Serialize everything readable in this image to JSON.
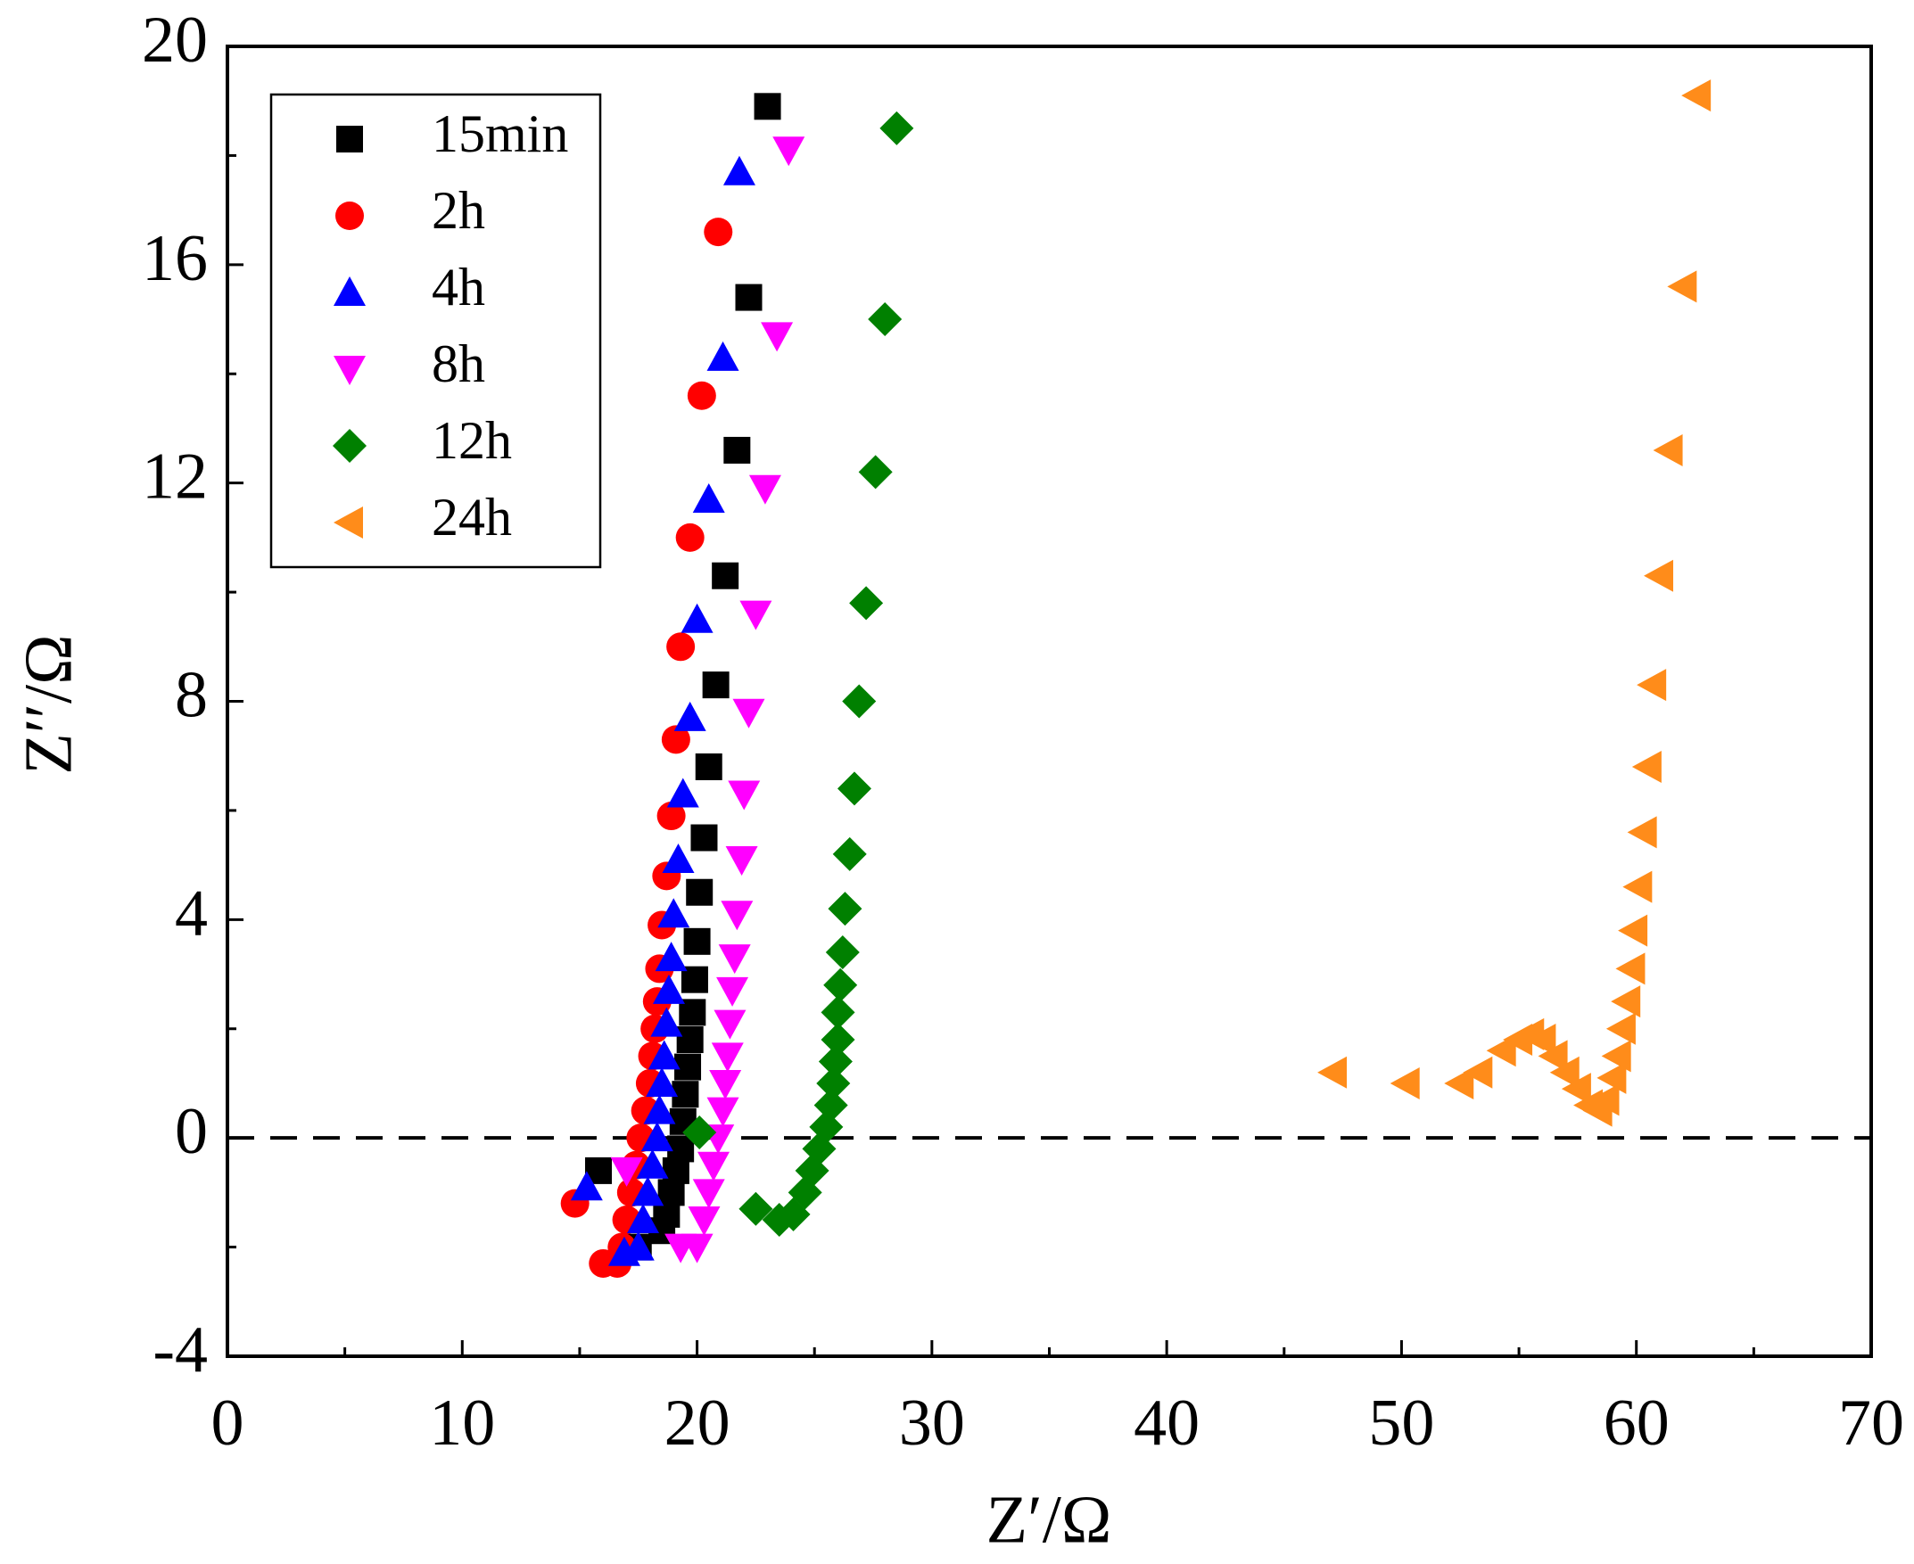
{
  "chart_data": {
    "type": "scatter",
    "x_label": "Z′/Ω",
    "y_label": "Z′′/Ω",
    "xlim": [
      0,
      70
    ],
    "ylim": [
      -4,
      20
    ],
    "xticks": [
      0,
      10,
      20,
      30,
      40,
      50,
      60,
      70
    ],
    "yticks": [
      -4,
      0,
      4,
      8,
      12,
      16,
      20
    ],
    "legend": "upper left",
    "reference_line": {
      "y": 0,
      "style": "dashed"
    },
    "series": [
      {
        "name": "15min",
        "color": "#000000",
        "marker": "square",
        "x": [
          23.0,
          22.2,
          21.7,
          21.2,
          20.8,
          20.5,
          20.3,
          20.1,
          20.0,
          19.9,
          19.8,
          19.7,
          19.6,
          19.5,
          19.4,
          19.3,
          19.1,
          18.9,
          18.7,
          18.5,
          17.5,
          15.8
        ],
        "values": [
          18.9,
          15.4,
          12.6,
          10.3,
          8.3,
          6.8,
          5.5,
          4.5,
          3.6,
          2.9,
          2.3,
          1.8,
          1.3,
          0.8,
          0.3,
          -0.2,
          -0.6,
          -1.0,
          -1.4,
          -1.7,
          -2.0,
          -0.6
        ]
      },
      {
        "name": "2h",
        "color": "#ff0000",
        "marker": "circle",
        "x": [
          20.9,
          20.2,
          19.7,
          19.3,
          19.1,
          18.9,
          18.7,
          18.5,
          18.4,
          18.3,
          18.2,
          18.1,
          18.0,
          17.8,
          17.6,
          17.4,
          17.2,
          17.0,
          16.8,
          16.6,
          16.0,
          14.8
        ],
        "values": [
          16.6,
          13.6,
          11.0,
          9.0,
          7.3,
          5.9,
          4.8,
          3.9,
          3.1,
          2.5,
          2.0,
          1.5,
          1.0,
          0.5,
          0.0,
          -0.5,
          -1.0,
          -1.5,
          -2.0,
          -2.3,
          -2.3,
          -1.2
        ]
      },
      {
        "name": "4h",
        "color": "#0000ff",
        "marker": "triangle-up",
        "x": [
          21.8,
          21.1,
          20.5,
          20.0,
          19.7,
          19.4,
          19.2,
          19.0,
          18.9,
          18.8,
          18.7,
          18.6,
          18.5,
          18.4,
          18.3,
          18.1,
          17.9,
          17.7,
          17.5,
          16.9,
          15.3
        ],
        "values": [
          17.7,
          14.3,
          11.7,
          9.5,
          7.7,
          6.3,
          5.1,
          4.1,
          3.3,
          2.7,
          2.1,
          1.5,
          1.0,
          0.5,
          0.0,
          -0.5,
          -1.0,
          -1.5,
          -2.0,
          -2.1,
          -0.9
        ]
      },
      {
        "name": "8h",
        "color": "#ff00ff",
        "marker": "triangle-down",
        "x": [
          23.9,
          23.4,
          22.9,
          22.5,
          22.2,
          22.0,
          21.9,
          21.7,
          21.6,
          21.5,
          21.4,
          21.3,
          21.2,
          21.1,
          20.9,
          20.7,
          20.5,
          20.3,
          20.0,
          19.3,
          17.0
        ],
        "values": [
          18.1,
          14.7,
          11.9,
          9.6,
          7.8,
          6.3,
          5.1,
          4.1,
          3.3,
          2.7,
          2.1,
          1.5,
          1.0,
          0.5,
          0.0,
          -0.5,
          -1.0,
          -1.5,
          -2.0,
          -2.0,
          -0.6
        ]
      },
      {
        "name": "12h",
        "color": "#008000",
        "marker": "diamond",
        "x": [
          28.5,
          28.0,
          27.6,
          27.2,
          26.9,
          26.7,
          26.5,
          26.3,
          26.2,
          26.1,
          26.0,
          26.0,
          25.9,
          25.8,
          25.7,
          25.5,
          25.2,
          24.9,
          24.6,
          24.1,
          23.5,
          22.5,
          20.1
        ],
        "values": [
          18.5,
          15.0,
          12.2,
          9.8,
          8.0,
          6.4,
          5.2,
          4.2,
          3.4,
          2.8,
          2.3,
          1.8,
          1.4,
          1.0,
          0.6,
          0.2,
          -0.2,
          -0.6,
          -1.0,
          -1.4,
          -1.5,
          -1.3,
          0.1
        ]
      },
      {
        "name": "24h",
        "color": "#ff8c1a",
        "marker": "triangle-left",
        "x": [
          62.6,
          62.0,
          61.4,
          61.0,
          60.7,
          60.5,
          60.3,
          60.1,
          59.9,
          59.8,
          59.6,
          59.4,
          59.2,
          59.0,
          58.7,
          58.4,
          58.0,
          57.5,
          57.0,
          56.5,
          56.0,
          55.5,
          55.0,
          54.3,
          53.3,
          52.5,
          50.2,
          47.1
        ],
        "values": [
          19.1,
          15.6,
          12.6,
          10.3,
          8.3,
          6.8,
          5.6,
          4.6,
          3.8,
          3.1,
          2.5,
          2.0,
          1.5,
          1.1,
          0.7,
          0.5,
          0.6,
          0.9,
          1.2,
          1.5,
          1.8,
          1.9,
          1.8,
          1.6,
          1.2,
          1.0,
          1.0,
          1.2
        ]
      }
    ]
  }
}
